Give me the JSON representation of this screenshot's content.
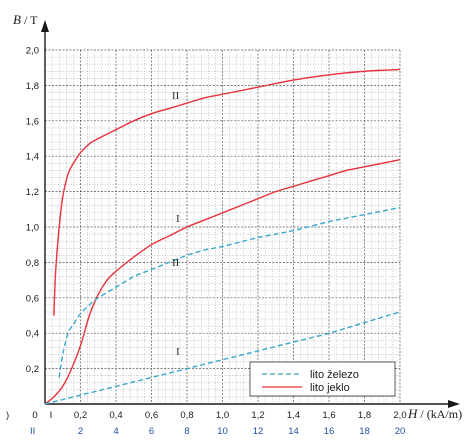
{
  "chart_data": {
    "type": "line",
    "y_axis": {
      "symbol": "B",
      "unit": "T",
      "range": [
        0,
        2.0
      ],
      "ticks": [
        "0,2",
        "0,4",
        "0,6",
        "0,8",
        "1,0",
        "1,2",
        "1,4",
        "1,6",
        "1,8",
        "2,0"
      ]
    },
    "x_axis": {
      "symbol": "H",
      "unit": "(kA/m)",
      "scale_I": {
        "range": [
          0,
          2.0
        ],
        "ticks": [
          "0",
          "0,2",
          "0,4",
          "0,6",
          "0,8",
          "1,0",
          "1,2",
          "1,4",
          "1,6",
          "1,8",
          "2,0"
        ],
        "row_marker": "I"
      },
      "scale_II": {
        "range": [
          0,
          20
        ],
        "ticks": [
          "2",
          "4",
          "6",
          "8",
          "10",
          "12",
          "14",
          "16",
          "18",
          "20"
        ],
        "row_marker": "II"
      },
      "left_stub": ")"
    },
    "grid": true,
    "legend": {
      "placement": "bottom-right",
      "entries": [
        "lito železo",
        "lito jeklo"
      ]
    },
    "curve_labels": {
      "steel_I": "I",
      "steel_II": "II",
      "iron_I": "I",
      "iron_II": "II"
    },
    "series": [
      {
        "name": "lito jeklo",
        "scale": "I",
        "style": "solid",
        "color": "#e8303a",
        "points": [
          [
            0,
            0
          ],
          [
            0.05,
            0.04
          ],
          [
            0.1,
            0.1
          ],
          [
            0.15,
            0.2
          ],
          [
            0.2,
            0.33
          ],
          [
            0.25,
            0.5
          ],
          [
            0.3,
            0.62
          ],
          [
            0.35,
            0.7
          ],
          [
            0.4,
            0.75
          ],
          [
            0.5,
            0.83
          ],
          [
            0.6,
            0.9
          ],
          [
            0.7,
            0.95
          ],
          [
            0.8,
            1.0
          ],
          [
            0.9,
            1.04
          ],
          [
            1.0,
            1.08
          ],
          [
            1.1,
            1.12
          ],
          [
            1.2,
            1.16
          ],
          [
            1.3,
            1.2
          ],
          [
            1.4,
            1.23
          ],
          [
            1.5,
            1.26
          ],
          [
            1.6,
            1.29
          ],
          [
            1.7,
            1.32
          ],
          [
            1.8,
            1.34
          ],
          [
            1.9,
            1.36
          ],
          [
            2.0,
            1.38
          ]
        ]
      },
      {
        "name": "lito jeklo",
        "scale": "II",
        "style": "solid",
        "color": "#e8303a",
        "points": [
          [
            0.5,
            0.5
          ],
          [
            0.6,
            0.75
          ],
          [
            0.8,
            1.0
          ],
          [
            1.0,
            1.17
          ],
          [
            1.3,
            1.3
          ],
          [
            1.6,
            1.36
          ],
          [
            2.0,
            1.42
          ],
          [
            2.5,
            1.47
          ],
          [
            3.0,
            1.5
          ],
          [
            4.0,
            1.55
          ],
          [
            5.0,
            1.6
          ],
          [
            6.0,
            1.64
          ],
          [
            7.0,
            1.67
          ],
          [
            8.0,
            1.7
          ],
          [
            9.0,
            1.73
          ],
          [
            10.0,
            1.75
          ],
          [
            12.0,
            1.79
          ],
          [
            14.0,
            1.83
          ],
          [
            16.0,
            1.86
          ],
          [
            18.0,
            1.88
          ],
          [
            20.0,
            1.89
          ]
        ]
      },
      {
        "name": "lito železo",
        "scale": "I",
        "style": "dashed",
        "color": "#3aa8c8",
        "points": [
          [
            0,
            0
          ],
          [
            0.2,
            0.05
          ],
          [
            0.4,
            0.1
          ],
          [
            0.6,
            0.15
          ],
          [
            0.8,
            0.2
          ],
          [
            1.0,
            0.25
          ],
          [
            1.2,
            0.3
          ],
          [
            1.4,
            0.35
          ],
          [
            1.6,
            0.4
          ],
          [
            1.8,
            0.46
          ],
          [
            2.0,
            0.52
          ]
        ]
      },
      {
        "name": "lito železo",
        "scale": "II",
        "style": "dashed",
        "color": "#3aa8c8",
        "points": [
          [
            0.8,
            0.15
          ],
          [
            1.0,
            0.28
          ],
          [
            1.3,
            0.4
          ],
          [
            1.6,
            0.45
          ],
          [
            2.0,
            0.51
          ],
          [
            2.5,
            0.56
          ],
          [
            3.0,
            0.6
          ],
          [
            4.0,
            0.66
          ],
          [
            5.0,
            0.72
          ],
          [
            6.0,
            0.76
          ],
          [
            7.0,
            0.8
          ],
          [
            8.0,
            0.84
          ],
          [
            9.0,
            0.87
          ],
          [
            10.0,
            0.89
          ],
          [
            12.0,
            0.94
          ],
          [
            14.0,
            0.98
          ],
          [
            16.0,
            1.03
          ],
          [
            18.0,
            1.07
          ],
          [
            20.0,
            1.11
          ]
        ]
      }
    ]
  }
}
